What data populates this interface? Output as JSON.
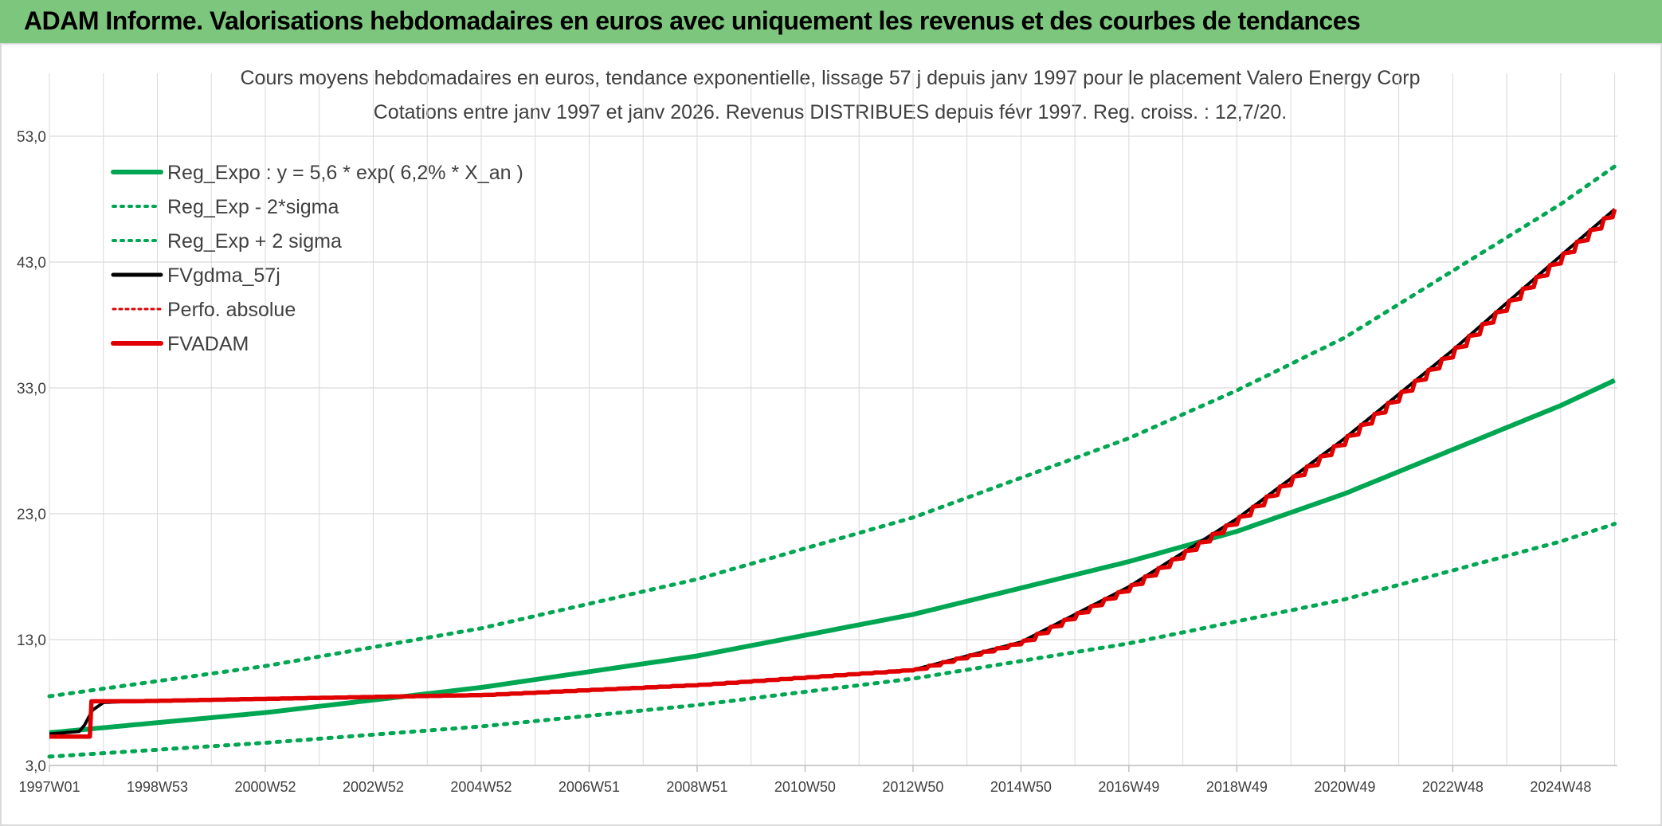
{
  "header": {
    "title": "ADAM Informe. Valorisations hebdomadaires en euros avec uniquement les revenus et des courbes de tendances"
  },
  "colors": {
    "title_bg": "#7dc67d",
    "reg_green": "#00a651",
    "fvgdma_black": "#000000",
    "red": "#e00000",
    "grid": "#d9d9d9"
  },
  "chart_data": {
    "type": "line",
    "title_line1": "Cours moyens hebdomadaires en euros, tendance exponentielle, lissage 57 j depuis janv 1997 pour le placement Valero Energy Corp",
    "title_line2": "Cotations entre janv 1997 et janv 2026. Revenus DISTRIBUES depuis févr 1997. Reg. croiss. : 12,7/20.",
    "ylim": [
      3,
      58
    ],
    "y_ticks": [
      3,
      13,
      23,
      33,
      43,
      53
    ],
    "y_tick_labels": [
      "3,0",
      "13,0",
      "23,0",
      "33,0",
      "43,0",
      "53,0"
    ],
    "x_range_years": [
      1997.0,
      2026.05
    ],
    "x_tick_labels": [
      {
        "year": 1997.0,
        "label": "1997W01"
      },
      {
        "year": 1999.0,
        "label": "1998W53"
      },
      {
        "year": 2001.0,
        "label": "2000W52"
      },
      {
        "year": 2003.0,
        "label": "2002W52"
      },
      {
        "year": 2005.0,
        "label": "2004W52"
      },
      {
        "year": 2007.0,
        "label": "2006W51"
      },
      {
        "year": 2009.0,
        "label": "2008W51"
      },
      {
        "year": 2011.0,
        "label": "2010W50"
      },
      {
        "year": 2013.0,
        "label": "2012W50"
      },
      {
        "year": 2015.0,
        "label": "2014W50"
      },
      {
        "year": 2017.0,
        "label": "2016W49"
      },
      {
        "year": 2019.0,
        "label": "2018W49"
      },
      {
        "year": 2021.0,
        "label": "2020W49"
      },
      {
        "year": 2023.0,
        "label": "2022W48"
      },
      {
        "year": 2025.0,
        "label": "2024W48"
      }
    ],
    "legend": [
      {
        "label": "Reg_Expo : y = 5,6 * exp( 6,2% *  X_an )",
        "style": "solid-green"
      },
      {
        "label": "Reg_Exp - 2*sigma",
        "style": "dotted-green"
      },
      {
        "label": "Reg_Exp + 2 sigma",
        "style": "dotted-green"
      },
      {
        "label": "FVgdma_57j",
        "style": "solid-black"
      },
      {
        "label": "Perfo. absolue",
        "style": "dotted-red"
      },
      {
        "label": "FVADAM",
        "style": "solid-red"
      }
    ],
    "series": [
      {
        "name": "Reg_Expo",
        "x": [
          1997,
          2001,
          2005,
          2009,
          2013,
          2017,
          2019,
          2021,
          2025,
          2026
        ],
        "y": [
          5.6,
          7.2,
          9.2,
          11.7,
          15.0,
          19.2,
          21.6,
          24.6,
          31.6,
          33.6
        ]
      },
      {
        "name": "Reg_Exp - 2*sigma",
        "x": [
          1997,
          2001,
          2005,
          2009,
          2013,
          2017,
          2021,
          2025,
          2026
        ],
        "y": [
          3.7,
          4.8,
          6.1,
          7.8,
          9.9,
          12.7,
          16.2,
          20.8,
          22.2
        ]
      },
      {
        "name": "Reg_Exp + 2 sigma",
        "x": [
          1997,
          2001,
          2005,
          2009,
          2013,
          2017,
          2019,
          2021,
          2025,
          2026
        ],
        "y": [
          8.5,
          10.9,
          13.9,
          17.8,
          22.7,
          29.0,
          32.8,
          37.0,
          47.6,
          50.6
        ]
      },
      {
        "name": "FVgdma_57j",
        "x": [
          1997,
          1997.55,
          1997.65,
          1997.8,
          1998.0,
          1998.5,
          2001,
          2005,
          2009,
          2011,
          2013,
          2015,
          2017,
          2019,
          2021,
          2023,
          2025,
          2026
        ],
        "y": [
          5.5,
          5.7,
          6.2,
          7.4,
          8.0,
          8.1,
          8.3,
          8.6,
          9.4,
          10.0,
          10.6,
          12.8,
          17.2,
          22.6,
          29.0,
          36.0,
          43.5,
          47.2
        ]
      },
      {
        "name": "FVADAM",
        "x": [
          1997,
          1997.55,
          1997.75,
          1997.8,
          1998.5,
          2001,
          2005,
          2009,
          2011,
          2013,
          2015,
          2017,
          2019,
          2021,
          2023,
          2025,
          2026
        ],
        "y": [
          5.3,
          5.3,
          5.3,
          8.1,
          8.1,
          8.3,
          8.6,
          9.4,
          10.0,
          10.6,
          12.8,
          17.2,
          22.6,
          29.0,
          36.0,
          43.5,
          47.2
        ]
      }
    ]
  }
}
